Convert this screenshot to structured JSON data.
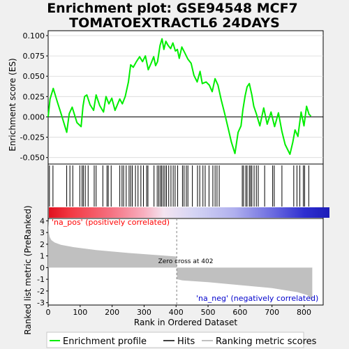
{
  "title_line1": "Enrichment plot: GSE94548 MCF7",
  "title_line2": "TOMATOEXTRACTL6 24DAYS",
  "colors": {
    "enrichment": "#00ee00",
    "hits": "#000000",
    "ranking": "#c0c0c0",
    "pos_label": "#ff0000",
    "neg_label": "#0000cc",
    "zero_line": "#808080"
  },
  "chart_data": [
    {
      "type": "line",
      "panel": "enrichment",
      "ylabel": "Enrichment score (ES)",
      "xlim": [
        0,
        860
      ],
      "ylim": [
        -0.058,
        0.106
      ],
      "yticks": [
        -0.05,
        -0.025,
        0.0,
        0.025,
        0.05,
        0.075,
        0.1
      ],
      "ytick_labels": [
        "-0.050",
        "-0.025",
        "0.000",
        "0.025",
        "0.050",
        "0.075",
        "0.100"
      ],
      "series": [
        {
          "name": "Enrichment profile",
          "x": [
            0,
            6,
            16,
            29,
            42,
            58,
            66,
            75,
            90,
            103,
            109,
            114,
            121,
            131,
            142,
            150,
            161,
            173,
            181,
            190,
            199,
            209,
            224,
            232,
            241,
            251,
            258,
            266,
            276,
            286,
            295,
            304,
            313,
            322,
            330,
            336,
            342,
            350,
            356,
            362,
            368,
            375,
            383,
            390,
            398,
            404,
            410,
            418,
            427,
            437,
            447,
            456,
            466,
            475,
            482,
            494,
            504,
            513,
            522,
            531,
            541,
            552,
            563,
            573,
            584,
            594,
            603,
            609,
            616,
            622,
            629,
            637,
            643,
            651,
            662,
            674,
            685,
            697,
            708,
            720,
            731,
            741,
            756,
            765,
            772,
            781,
            791,
            800,
            808,
            816,
            822
          ],
          "y": [
            0.0,
            0.022,
            0.035,
            0.018,
            0.002,
            -0.019,
            0.004,
            0.012,
            -0.007,
            -0.012,
            0.013,
            0.025,
            0.027,
            0.015,
            0.008,
            0.027,
            0.014,
            0.006,
            0.025,
            0.016,
            0.023,
            0.008,
            0.022,
            0.016,
            0.025,
            0.043,
            0.064,
            0.061,
            0.068,
            0.074,
            0.068,
            0.075,
            0.058,
            0.066,
            0.074,
            0.063,
            0.068,
            0.088,
            0.096,
            0.083,
            0.093,
            0.088,
            0.084,
            0.091,
            0.081,
            0.083,
            0.072,
            0.086,
            0.079,
            0.071,
            0.066,
            0.051,
            0.043,
            0.056,
            0.041,
            0.043,
            0.039,
            0.031,
            0.047,
            0.039,
            0.021,
            0.004,
            -0.014,
            -0.031,
            -0.045,
            -0.019,
            -0.011,
            0.009,
            0.026,
            0.037,
            0.041,
            0.027,
            0.013,
            0.004,
            -0.011,
            0.011,
            -0.009,
            0.006,
            -0.012,
            0.005,
            -0.018,
            -0.034,
            -0.046,
            -0.031,
            -0.016,
            -0.024,
            0.006,
            -0.011,
            0.013,
            0.003,
            0.001
          ]
        }
      ]
    },
    {
      "type": "scatter",
      "panel": "hits",
      "series": [
        {
          "name": "Hits",
          "x": [
            4,
            15,
            58,
            68,
            77,
            99,
            106,
            110,
            116,
            125,
            144,
            150,
            171,
            184,
            188,
            197,
            224,
            231,
            236,
            244,
            253,
            258,
            263,
            273,
            281,
            290,
            298,
            308,
            312,
            331,
            341,
            346,
            351,
            355,
            360,
            365,
            370,
            377,
            384,
            391,
            397,
            405,
            420,
            425,
            432,
            437,
            451,
            467,
            474,
            484,
            491,
            503,
            515,
            522,
            528,
            535,
            607,
            611,
            618,
            622,
            629,
            633,
            637,
            644,
            651,
            657,
            677,
            702,
            707,
            731,
            768,
            778,
            787,
            798,
            802,
            815
          ]
        }
      ]
    },
    {
      "type": "area",
      "panel": "ranking",
      "ylabel": "Ranked list metric (PreRanked)",
      "xlabel": "Rank in Ordered Dataset",
      "xlim": [
        0,
        860
      ],
      "ylim": [
        -3.2,
        4.2
      ],
      "xticks": [
        0,
        100,
        200,
        300,
        400,
        500,
        600,
        700,
        800
      ],
      "yticks": [
        -3,
        -2,
        -1,
        0,
        1,
        2,
        3,
        4
      ],
      "series": [
        {
          "name": "Ranking metric scores",
          "x": [
            0,
            2,
            5,
            10,
            20,
            40,
            80,
            150,
            250,
            350,
            401,
            402,
            403,
            420,
            500,
            600,
            700,
            780,
            810,
            820,
            826
          ],
          "y": [
            4.0,
            3.0,
            2.6,
            2.35,
            2.15,
            1.95,
            1.75,
            1.5,
            1.25,
            1.05,
            0.95,
            0.0,
            -1.0,
            -1.1,
            -1.25,
            -1.5,
            -1.75,
            -2.1,
            -2.35,
            -2.6,
            -2.95
          ]
        }
      ],
      "annotations": {
        "zero_cross": "Zero cross at 402",
        "pos_label": "'na_pos' (positively correlated)",
        "neg_label": "'na_neg' (negatively correlated)"
      }
    }
  ],
  "legend": {
    "enrichment": "Enrichment profile",
    "hits": "Hits",
    "ranking": "Ranking metric scores"
  }
}
